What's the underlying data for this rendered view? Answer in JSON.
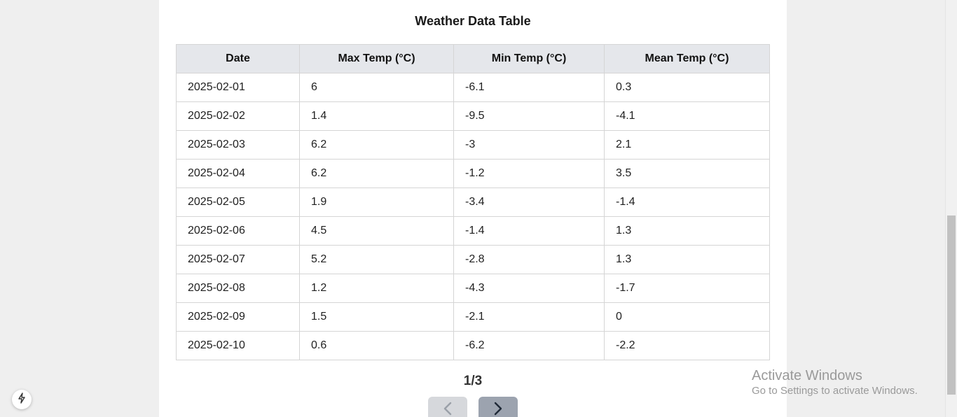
{
  "title": "Weather Data Table",
  "table": {
    "headers": [
      "Date",
      "Max Temp (°C)",
      "Min Temp (°C)",
      "Mean Temp (°C)"
    ],
    "rows": [
      [
        "2025-02-01",
        "6",
        "-6.1",
        "0.3"
      ],
      [
        "2025-02-02",
        "1.4",
        "-9.5",
        "-4.1"
      ],
      [
        "2025-02-03",
        "6.2",
        "-3",
        "2.1"
      ],
      [
        "2025-02-04",
        "6.2",
        "-1.2",
        "3.5"
      ],
      [
        "2025-02-05",
        "1.9",
        "-3.4",
        "-1.4"
      ],
      [
        "2025-02-06",
        "4.5",
        "-1.4",
        "1.3"
      ],
      [
        "2025-02-07",
        "5.2",
        "-2.8",
        "1.3"
      ],
      [
        "2025-02-08",
        "1.2",
        "-4.3",
        "-1.7"
      ],
      [
        "2025-02-09",
        "1.5",
        "-2.1",
        "0"
      ],
      [
        "2025-02-10",
        "0.6",
        "-6.2",
        "-2.2"
      ]
    ]
  },
  "pagination": {
    "label": "1/3",
    "prev_icon": "chevron-left-icon",
    "next_icon": "chevron-right-icon",
    "prev_disabled": true
  },
  "watermark": {
    "title": "Activate Windows",
    "subtitle": "Go to Settings to activate Windows."
  },
  "floating_button_icon": "lightning-bolt-icon",
  "colors": {
    "page_bg": "#efefef",
    "card_bg": "#ffffff",
    "header_bg": "#e5e7eb",
    "prev_button_bg": "#d6d8dc",
    "next_button_bg": "#9ca3af"
  }
}
